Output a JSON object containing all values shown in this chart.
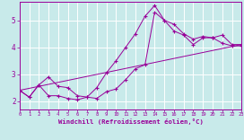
{
  "xlabel": "Windchill (Refroidissement éolien,°C)",
  "xlim": [
    0,
    23
  ],
  "ylim": [
    1.7,
    5.7
  ],
  "xticks": [
    0,
    1,
    2,
    3,
    4,
    5,
    6,
    7,
    8,
    9,
    10,
    11,
    12,
    13,
    14,
    15,
    16,
    17,
    18,
    19,
    20,
    21,
    22,
    23
  ],
  "yticks": [
    2,
    3,
    4,
    5
  ],
  "bg_color": "#c8eaea",
  "grid_color": "#ffffff",
  "line_color": "#990099",
  "curve1_x": [
    0,
    1,
    2,
    3,
    4,
    5,
    6,
    7,
    8,
    9,
    10,
    11,
    12,
    13,
    14,
    15,
    16,
    17,
    18,
    19,
    20,
    21,
    22,
    23
  ],
  "curve1_y": [
    2.4,
    2.15,
    2.6,
    2.9,
    2.55,
    2.5,
    2.2,
    2.15,
    2.5,
    3.05,
    3.5,
    4.0,
    4.5,
    5.15,
    5.55,
    5.0,
    4.6,
    4.45,
    4.1,
    4.35,
    4.35,
    4.45,
    4.1,
    4.1
  ],
  "curve2_x": [
    0,
    1,
    2,
    3,
    4,
    5,
    6,
    7,
    8,
    9,
    10,
    11,
    12,
    13,
    14,
    15,
    16,
    17,
    18,
    19,
    20,
    21,
    22,
    23
  ],
  "curve2_y": [
    2.4,
    2.15,
    2.6,
    2.2,
    2.2,
    2.1,
    2.05,
    2.15,
    2.1,
    2.35,
    2.45,
    2.8,
    3.2,
    3.35,
    5.3,
    5.0,
    4.85,
    4.5,
    4.3,
    4.4,
    4.35,
    4.15,
    4.05,
    4.05
  ],
  "curve3_x": [
    0,
    23
  ],
  "curve3_y": [
    2.4,
    4.1
  ]
}
